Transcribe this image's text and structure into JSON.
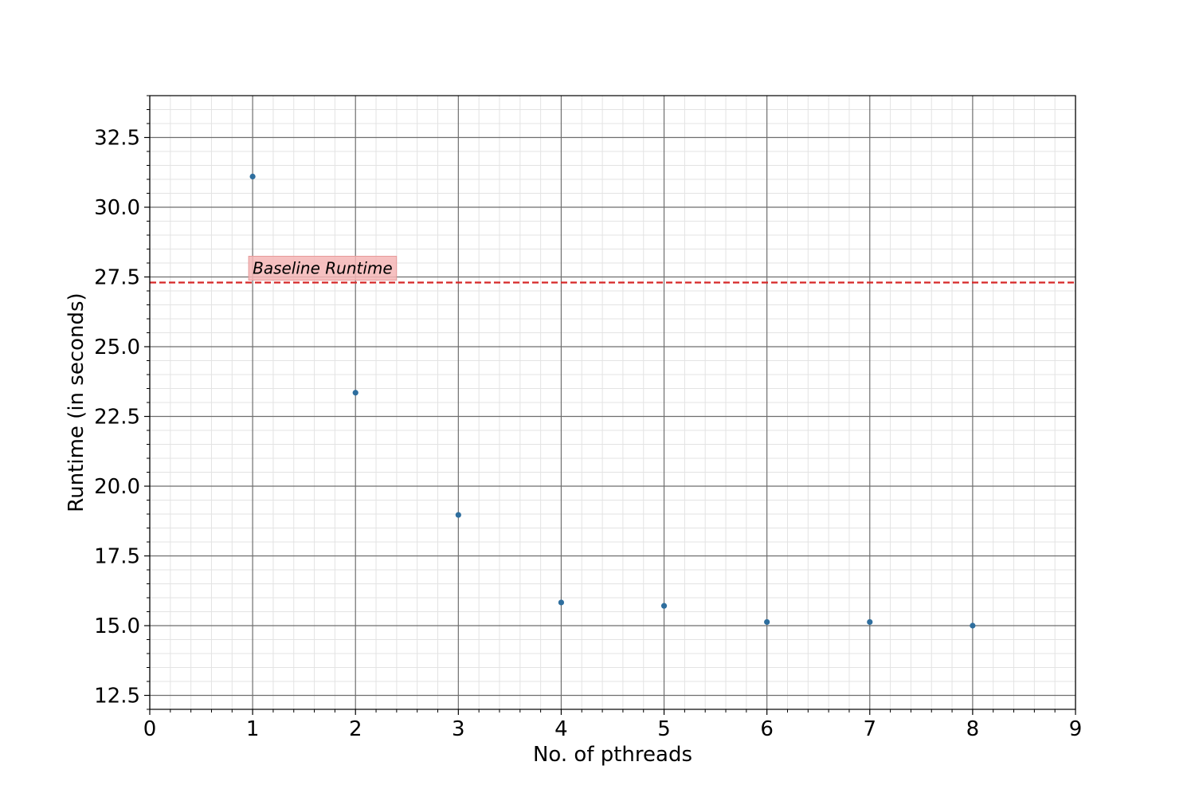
{
  "chart_data": {
    "type": "scatter",
    "title": "",
    "xlabel": "No. of pthreads",
    "ylabel": "Runtime (in seconds)",
    "xlim": [
      0,
      9
    ],
    "ylim": [
      12,
      34
    ],
    "xticks": [
      "0",
      "1",
      "2",
      "3",
      "4",
      "5",
      "6",
      "7",
      "8",
      "9"
    ],
    "yticks": [
      "12.5",
      "15.0",
      "17.5",
      "20.0",
      "22.5",
      "25.0",
      "27.5",
      "30.0",
      "32.5"
    ],
    "grid": true,
    "minor_grid": true,
    "series": [
      {
        "color": "#2e6e9e",
        "x": [
          1,
          2,
          3,
          4,
          5,
          6,
          7,
          8
        ],
        "y": [
          31.1,
          23.35,
          18.97,
          15.83,
          15.71,
          15.13,
          15.13,
          15.0
        ]
      }
    ],
    "reference_line": {
      "y": 27.3,
      "color": "#d62728",
      "style": "dashed",
      "label": "Baseline Runtime",
      "label_x": 1,
      "label_bg": "#f4b6b6"
    }
  }
}
